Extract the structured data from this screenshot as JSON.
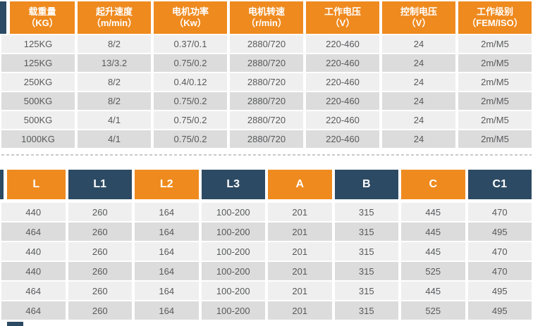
{
  "specs_table": {
    "headers": [
      {
        "title": "载重量",
        "unit": "（KG）"
      },
      {
        "title": "起升速度",
        "unit": "（m/min）"
      },
      {
        "title": "电机功率",
        "unit": "（Kw）"
      },
      {
        "title": "电机转速",
        "unit": "（r/min）"
      },
      {
        "title": "工作电压",
        "unit": "（V）"
      },
      {
        "title": "控制电压",
        "unit": "（V）"
      },
      {
        "title": "工作级别",
        "unit": "（FEM/ISO）"
      }
    ],
    "rows": [
      [
        "125KG",
        "8/2",
        "0.37/0.1",
        "2880/720",
        "220-460",
        "24",
        "2m/M5"
      ],
      [
        "125KG",
        "13/3.2",
        "0.75/0.2",
        "2880/720",
        "220-460",
        "24",
        "2m/M5"
      ],
      [
        "250KG",
        "8/2",
        "0.4/0.12",
        "2880/720",
        "220-460",
        "24",
        "2m/M5"
      ],
      [
        "500KG",
        "8/2",
        "0.75/0.2",
        "2880/720",
        "220-460",
        "24",
        "2m/M5"
      ],
      [
        "500KG",
        "4/1",
        "0.75/0.2",
        "2880/720",
        "220-460",
        "24",
        "2m/M5"
      ],
      [
        "1000KG",
        "4/1",
        "0.75/0.2",
        "2880/720",
        "220-460",
        "24",
        "2m/M5"
      ]
    ]
  },
  "dimensions_table": {
    "headers": [
      "L",
      "L1",
      "L2",
      "L3",
      "A",
      "B",
      "C",
      "C1"
    ],
    "rows": [
      [
        "440",
        "260",
        "164",
        "100-200",
        "201",
        "315",
        "445",
        "470"
      ],
      [
        "464",
        "260",
        "164",
        "100-200",
        "201",
        "315",
        "445",
        "495"
      ],
      [
        "440",
        "260",
        "164",
        "100-200",
        "201",
        "315",
        "445",
        "470"
      ],
      [
        "440",
        "260",
        "164",
        "100-200",
        "201",
        "315",
        "525",
        "470"
      ],
      [
        "464",
        "260",
        "164",
        "100-200",
        "201",
        "315",
        "445",
        "495"
      ],
      [
        "464",
        "260",
        "164",
        "100-200",
        "201",
        "315",
        "525",
        "495"
      ]
    ]
  },
  "colors": {
    "orange": "#ef8a1e",
    "dark_blue": "#2c4a63",
    "row_light": "#efefef",
    "row_dark": "#dcdcdc",
    "cell_text": "#58595b"
  }
}
